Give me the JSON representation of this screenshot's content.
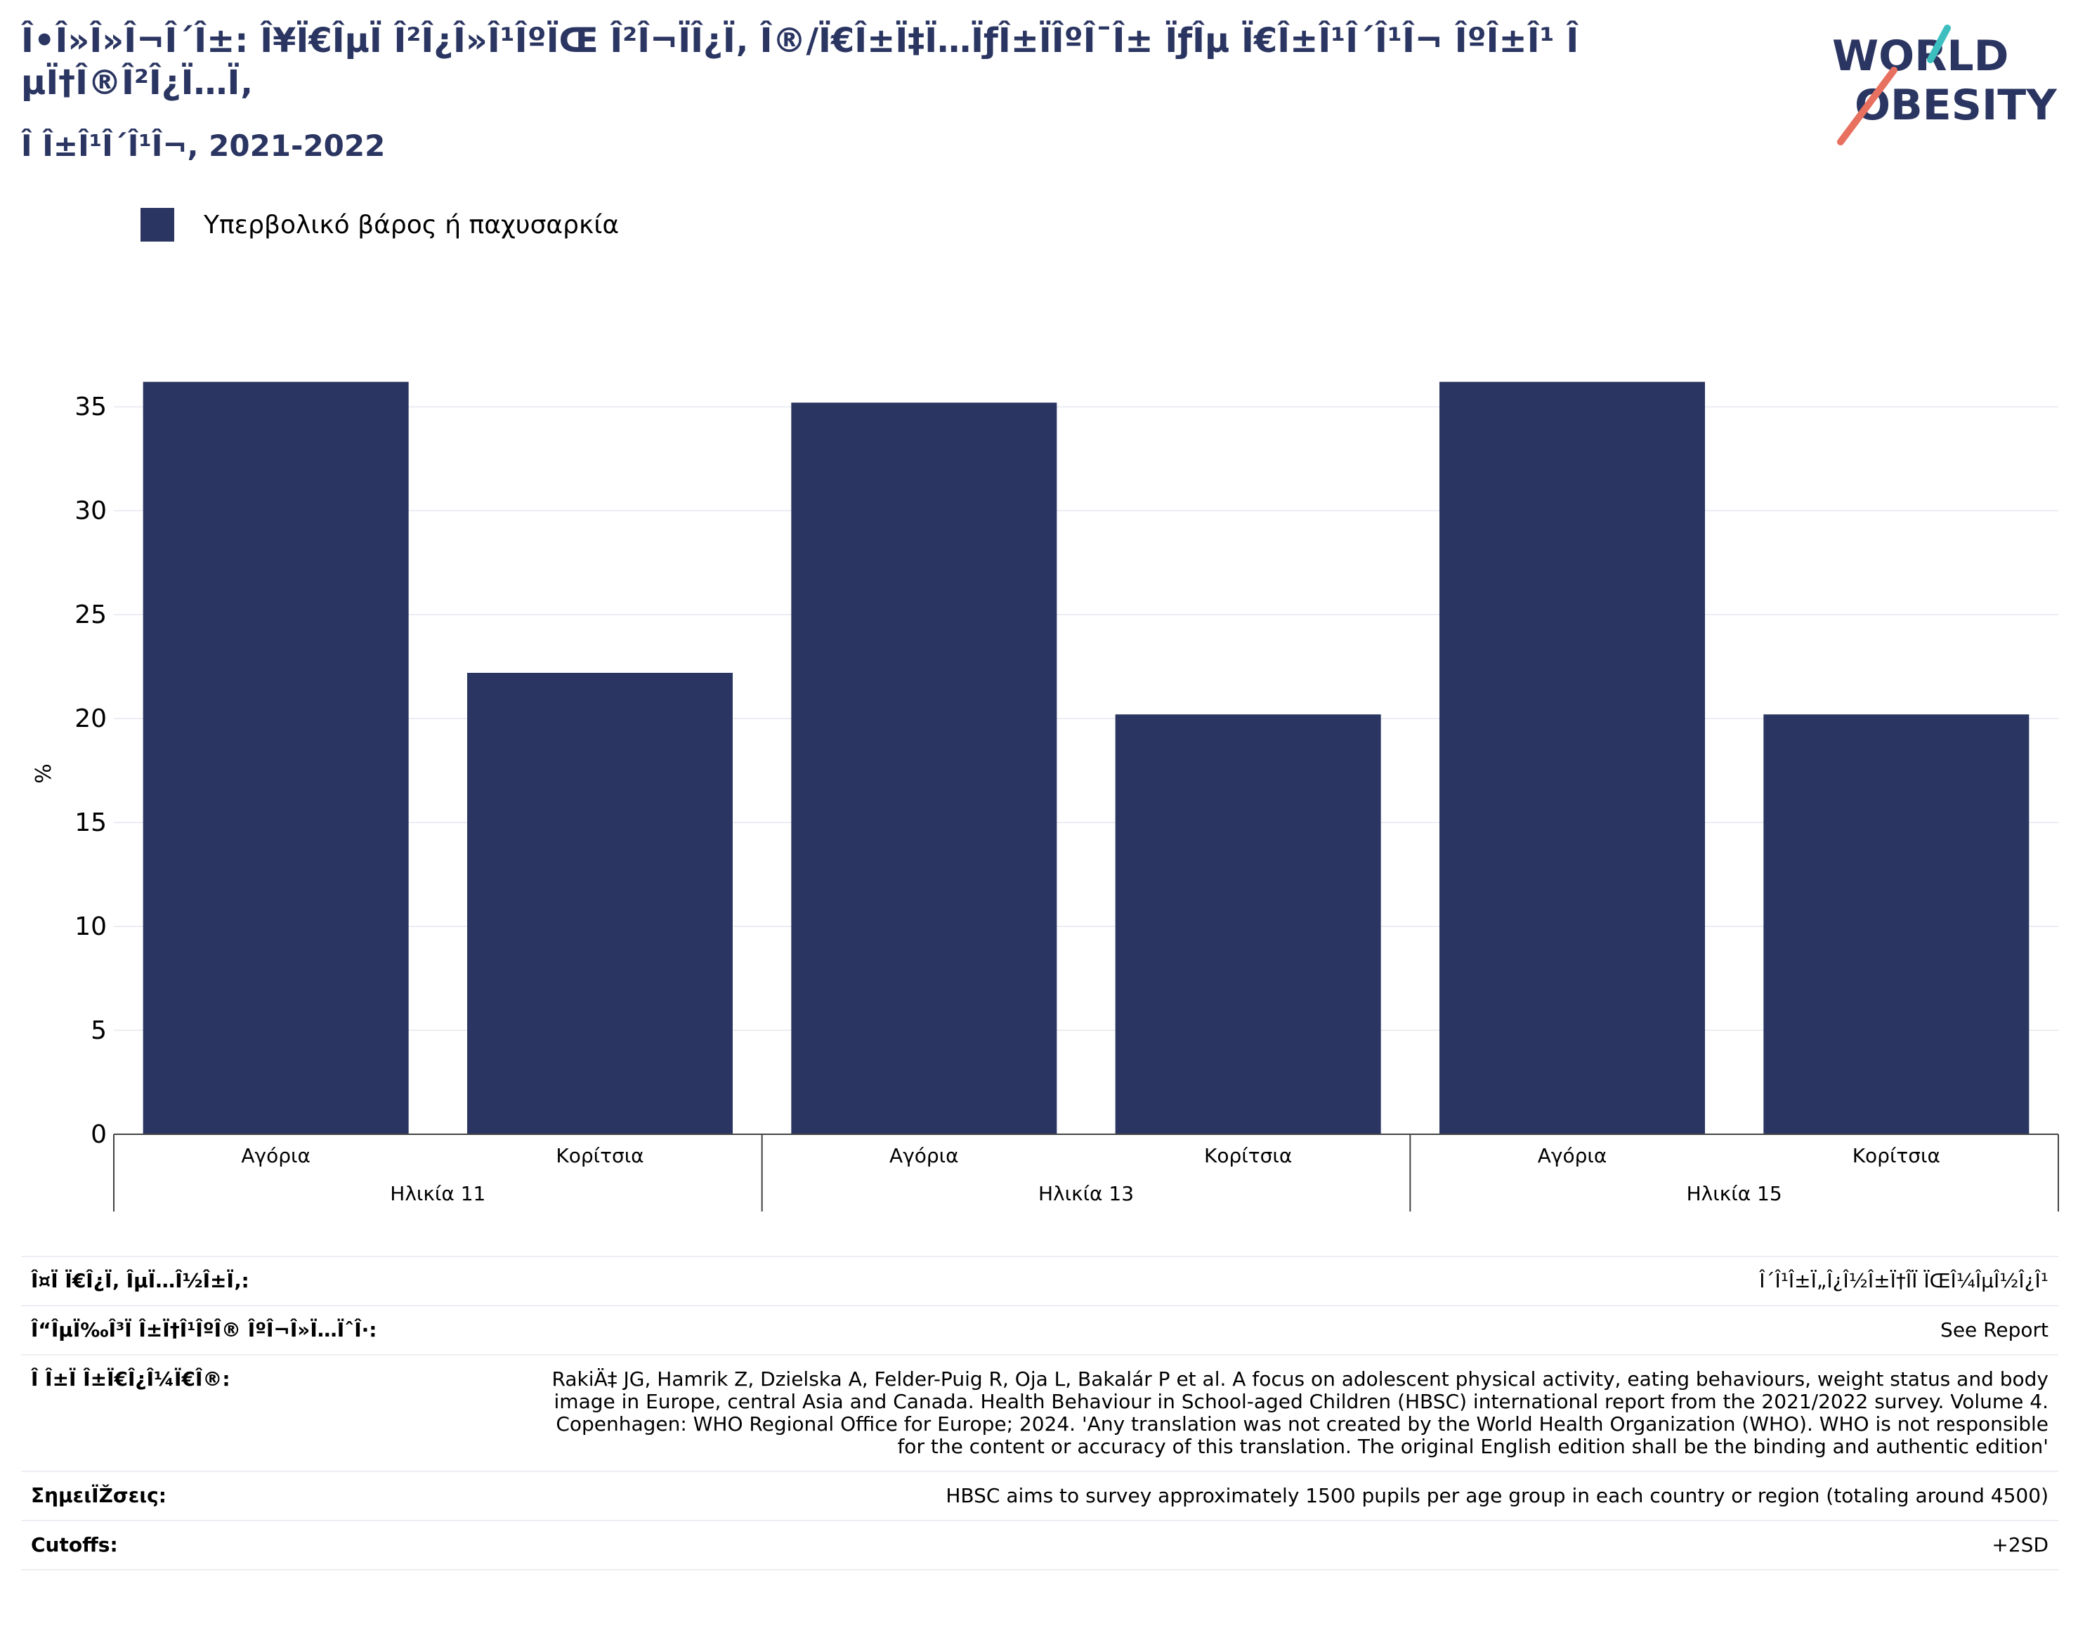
{
  "header": {
    "title": "Î•Î»Î»Î¬Î´Î±: Î¥Ï€ÎµÏ Î²Î¿Î»Î¹ÎºÏŒ Î²Î¬ÏÎ¿Ï‚ Î®/Ï€Î±Ï‡Ï…ÏƒÎ±ÏÎºÎ¯Î± ÏƒÎµ Ï€Î±Î¹Î´Î¹Î¬ ÎºÎ±Î¹ ÎµÏ†Î®Î²Î¿Ï…Ï‚",
    "subtitle": "Î Î±Î¹Î´Î¹Î¬, 2021-2022"
  },
  "logo": {
    "line1": "WORLD",
    "line2": "OBESITY",
    "accent_teal": "#3dbfbf",
    "accent_coral": "#e8705f"
  },
  "legend": {
    "label": "Υπερβολικό βάρος ή παχυσαρκία",
    "color": "#2a3561"
  },
  "chart_data": {
    "type": "bar",
    "ylabel": "%",
    "ylim": [
      0,
      37
    ],
    "yticks": [
      0,
      5,
      10,
      15,
      20,
      25,
      30,
      35
    ],
    "grid": true,
    "legend_position": "top-left",
    "bar_color": "#2a3561",
    "groups": [
      {
        "label": "Ηλικία 11",
        "categories": [
          "Αγόρια",
          "Κορίτσια"
        ],
        "values": [
          36.2,
          22.2
        ]
      },
      {
        "label": "Ηλικία 13",
        "categories": [
          "Αγόρια",
          "Κορίτσια"
        ],
        "values": [
          35.2,
          20.2
        ]
      },
      {
        "label": "Ηλικία 15",
        "categories": [
          "Αγόρια",
          "Κορίτσια"
        ],
        "values": [
          36.2,
          20.2
        ]
      }
    ]
  },
  "info": [
    {
      "label": "Î¤Ï Ï€Î¿Ï‚ ÎµÏ…Î½Î±Ï‚:",
      "value": "Î´Î¹Î±Ï„Î¿Î½Î±Ï†Î­Ï ÏŒÎ¼ÎµÎ½Î¿Î¹"
    },
    {
      "label": "Î“ÎµÏ‰Î³Ï Î±Ï†Î¹ÎºÎ® ÎºÎ¬Î»Ï…ÏˆÎ·:",
      "value": "See Report"
    },
    {
      "label": "Î Î±Ï Î±Ï€Î¿Î¼Ï€Î®:",
      "value": "RakiÄ‡ JG, Hamrik Z, Dzielska A, Felder-Puig R, Oja L, Bakalár P et al. A focus on adolescent physical activity, eating behaviours, weight status and body image in Europe, central Asia and Canada. Health Behaviour in School-aged Children (HBSC) international report from the 2021/2022 survey. Volume 4. Copenhagen: WHO Regional Office for Europe; 2024. 'Any translation was not created by the World Health Organization (WHO). WHO is not responsible for the content or accuracy of this translation. The original English edition shall be the binding and authentic edition'"
    },
    {
      "label": "ΣημειÏŽσεις:",
      "value": "HBSC aims to survey approximately 1500 pupils per age group in each country or region (totaling around 4500)"
    },
    {
      "label": "Cutoffs:",
      "value": "+2SD"
    }
  ]
}
